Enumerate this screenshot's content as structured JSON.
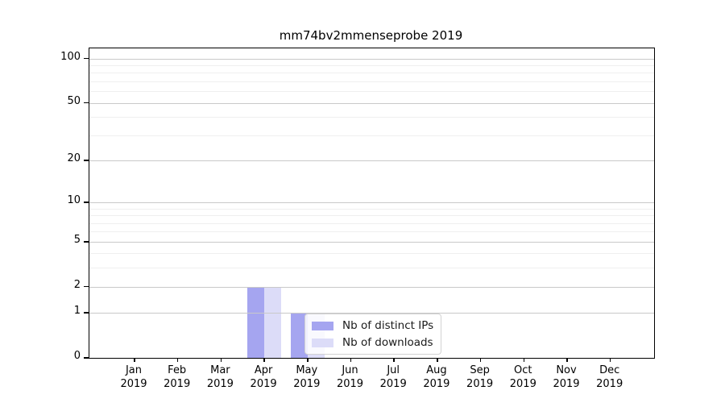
{
  "chart_data": {
    "type": "bar",
    "title": "mm74bv2mmenseprobe 2019",
    "categories": [
      "Jan",
      "Feb",
      "Mar",
      "Apr",
      "May",
      "Jun",
      "Jul",
      "Aug",
      "Sep",
      "Oct",
      "Nov",
      "Dec"
    ],
    "x_tick_second_line": "2019",
    "series": [
      {
        "name": "Nb of distinct IPs",
        "color": "#a5a5f0",
        "values": [
          0,
          0,
          0,
          2,
          1,
          0,
          0,
          0,
          0,
          0,
          0,
          0
        ]
      },
      {
        "name": "Nb of downloads",
        "color": "#dcdcf8",
        "values": [
          0,
          0,
          0,
          2,
          1,
          0,
          0,
          0,
          0,
          0,
          0,
          0
        ]
      }
    ],
    "y_scale": "log1p",
    "y_ticks": [
      0,
      1,
      2,
      5,
      10,
      20,
      50,
      100
    ],
    "y_minor_gridlines": [
      3,
      4,
      6,
      7,
      8,
      9,
      30,
      40,
      60,
      70,
      80,
      90
    ],
    "ylim": [
      0,
      117
    ],
    "grid": "horizontal",
    "legend_position": "inside-lower-center",
    "colors": {
      "major_grid": "#c9c9c9",
      "minor_grid": "#efefef",
      "spine": "#000000",
      "text": "#000000"
    }
  }
}
